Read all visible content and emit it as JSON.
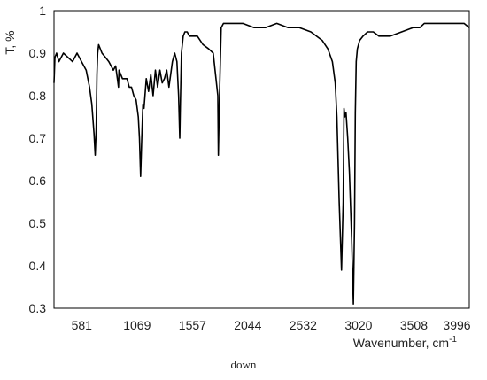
{
  "chart_data": {
    "type": "line",
    "ylabel": "T, %",
    "xlabel": "Wavenumber, cm",
    "xlabel_superscript": "-1",
    "xlim": [
      337,
      3996
    ],
    "ylim": [
      0.3,
      1.0
    ],
    "x_ticks": [
      581,
      1069,
      1557,
      2044,
      2532,
      3020,
      3508,
      3996
    ],
    "y_ticks": [
      0.3,
      0.4,
      0.5,
      0.6,
      0.7,
      0.8,
      0.9,
      1.0
    ],
    "y_tick_labels": [
      "0.3",
      "0.4",
      "0.5",
      "0.6",
      "0.7",
      "0.8",
      "0.9",
      "1"
    ],
    "grid": false,
    "legend": false,
    "line_color": "#000000",
    "series": [
      {
        "x": [
          337,
          345,
          360,
          380,
          420,
          460,
          500,
          540,
          580,
          620,
          650,
          670,
          690,
          700,
          708,
          715,
          722,
          730,
          745,
          760,
          790,
          820,
          860,
          880,
          900,
          905,
          910,
          940,
          980,
          1000,
          1020,
          1040,
          1060,
          1080,
          1090,
          1100,
          1110,
          1120,
          1130,
          1150,
          1170,
          1190,
          1210,
          1230,
          1250,
          1270,
          1290,
          1310,
          1330,
          1350,
          1380,
          1400,
          1420,
          1435,
          1445,
          1450,
          1460,
          1475,
          1490,
          1510,
          1530,
          1560,
          1600,
          1650,
          1700,
          1740,
          1760,
          1780,
          1785,
          1795,
          1810,
          1830,
          1850,
          1900,
          2000,
          2100,
          2200,
          2300,
          2400,
          2500,
          2600,
          2700,
          2750,
          2790,
          2815,
          2830,
          2850,
          2870,
          2885,
          2892,
          2900,
          2910,
          2925,
          2940,
          2960,
          2975,
          2985,
          2992,
          3000,
          3010,
          3030,
          3060,
          3100,
          3150,
          3200,
          3300,
          3400,
          3500,
          3560,
          3600,
          3650,
          3700,
          3750,
          3800,
          3850,
          3900,
          3950,
          3996
        ],
        "y": [
          0.83,
          0.89,
          0.9,
          0.88,
          0.9,
          0.89,
          0.88,
          0.9,
          0.88,
          0.86,
          0.82,
          0.78,
          0.71,
          0.66,
          0.72,
          0.85,
          0.9,
          0.92,
          0.91,
          0.9,
          0.89,
          0.88,
          0.86,
          0.87,
          0.83,
          0.82,
          0.86,
          0.84,
          0.84,
          0.82,
          0.82,
          0.8,
          0.79,
          0.75,
          0.7,
          0.61,
          0.7,
          0.78,
          0.77,
          0.84,
          0.81,
          0.85,
          0.8,
          0.86,
          0.82,
          0.86,
          0.83,
          0.84,
          0.86,
          0.82,
          0.88,
          0.9,
          0.88,
          0.8,
          0.7,
          0.78,
          0.9,
          0.94,
          0.95,
          0.95,
          0.94,
          0.94,
          0.94,
          0.92,
          0.91,
          0.9,
          0.85,
          0.8,
          0.66,
          0.8,
          0.96,
          0.97,
          0.97,
          0.97,
          0.97,
          0.96,
          0.96,
          0.97,
          0.96,
          0.96,
          0.95,
          0.93,
          0.91,
          0.88,
          0.83,
          0.75,
          0.55,
          0.39,
          0.55,
          0.77,
          0.75,
          0.76,
          0.7,
          0.62,
          0.46,
          0.31,
          0.5,
          0.76,
          0.88,
          0.91,
          0.93,
          0.94,
          0.95,
          0.95,
          0.94,
          0.94,
          0.95,
          0.96,
          0.96,
          0.97,
          0.97,
          0.97,
          0.97,
          0.97,
          0.97,
          0.97,
          0.97,
          0.96
        ]
      }
    ]
  },
  "caption": "down"
}
